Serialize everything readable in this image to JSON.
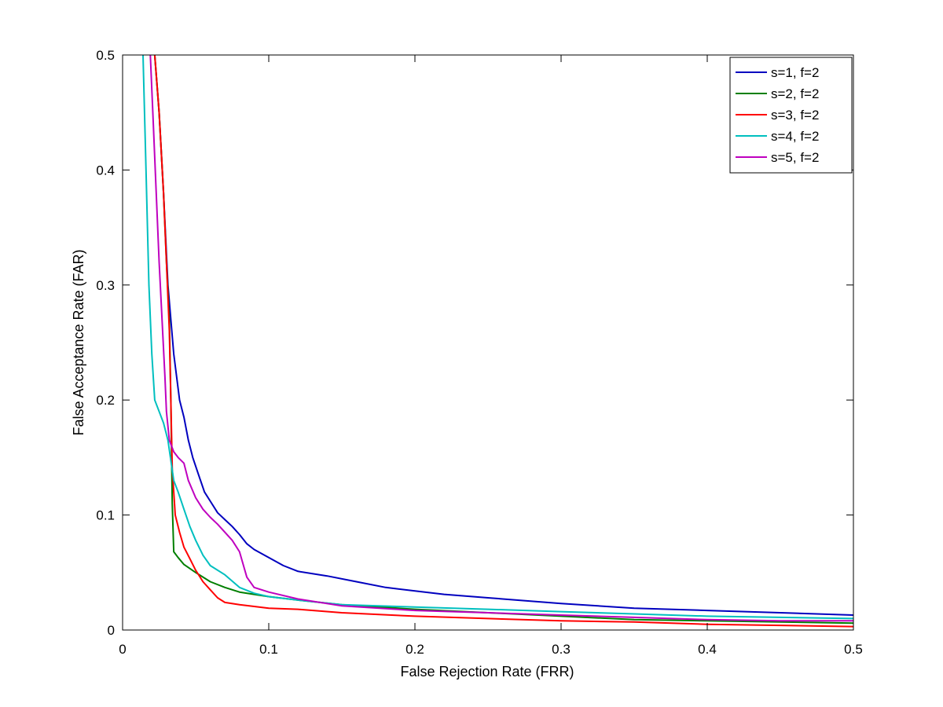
{
  "chart_data": {
    "type": "line",
    "title": "",
    "xlabel": "False Rejection Rate (FRR)",
    "ylabel": "False Acceptance Rate (FAR)",
    "xlim": [
      0,
      0.5
    ],
    "ylim": [
      0,
      0.5
    ],
    "x_ticks": [
      0,
      0.1,
      0.2,
      0.3,
      0.4,
      0.5
    ],
    "y_ticks": [
      0,
      0.1,
      0.2,
      0.3,
      0.4,
      0.5
    ],
    "x_tick_labels": [
      "0",
      "0.1",
      "0.2",
      "0.3",
      "0.4",
      "0.5"
    ],
    "y_tick_labels": [
      "0",
      "0.1",
      "0.2",
      "0.3",
      "0.4",
      "0.5"
    ],
    "grid": false,
    "legend_position": "top-right",
    "series": [
      {
        "name": "s=1, f=2",
        "color": "#0000bf",
        "points": [
          [
            0.022,
            0.5
          ],
          [
            0.025,
            0.45
          ],
          [
            0.028,
            0.38
          ],
          [
            0.031,
            0.3
          ],
          [
            0.033,
            0.27
          ],
          [
            0.035,
            0.24
          ],
          [
            0.037,
            0.22
          ],
          [
            0.039,
            0.2
          ],
          [
            0.042,
            0.185
          ],
          [
            0.045,
            0.165
          ],
          [
            0.048,
            0.15
          ],
          [
            0.052,
            0.135
          ],
          [
            0.056,
            0.12
          ],
          [
            0.06,
            0.112
          ],
          [
            0.065,
            0.102
          ],
          [
            0.07,
            0.096
          ],
          [
            0.075,
            0.09
          ],
          [
            0.08,
            0.083
          ],
          [
            0.085,
            0.075
          ],
          [
            0.09,
            0.07
          ],
          [
            0.1,
            0.063
          ],
          [
            0.11,
            0.056
          ],
          [
            0.12,
            0.051
          ],
          [
            0.14,
            0.047
          ],
          [
            0.16,
            0.042
          ],
          [
            0.18,
            0.037
          ],
          [
            0.2,
            0.034
          ],
          [
            0.22,
            0.031
          ],
          [
            0.25,
            0.028
          ],
          [
            0.28,
            0.025
          ],
          [
            0.3,
            0.023
          ],
          [
            0.35,
            0.019
          ],
          [
            0.4,
            0.017
          ],
          [
            0.45,
            0.015
          ],
          [
            0.5,
            0.013
          ]
        ]
      },
      {
        "name": "s=2, f=2",
        "color": "#007f00",
        "points": [
          [
            0.022,
            0.5
          ],
          [
            0.025,
            0.45
          ],
          [
            0.028,
            0.38
          ],
          [
            0.03,
            0.32
          ],
          [
            0.032,
            0.27
          ],
          [
            0.033,
            0.2
          ],
          [
            0.034,
            0.11
          ],
          [
            0.035,
            0.068
          ],
          [
            0.038,
            0.063
          ],
          [
            0.042,
            0.057
          ],
          [
            0.05,
            0.05
          ],
          [
            0.06,
            0.042
          ],
          [
            0.07,
            0.037
          ],
          [
            0.08,
            0.033
          ],
          [
            0.1,
            0.029
          ],
          [
            0.12,
            0.026
          ],
          [
            0.15,
            0.022
          ],
          [
            0.2,
            0.018
          ],
          [
            0.25,
            0.015
          ],
          [
            0.3,
            0.012
          ],
          [
            0.35,
            0.009
          ],
          [
            0.4,
            0.008
          ],
          [
            0.45,
            0.007
          ],
          [
            0.5,
            0.006
          ]
        ]
      },
      {
        "name": "s=3, f=2",
        "color": "#ff0000",
        "points": [
          [
            0.022,
            0.5
          ],
          [
            0.025,
            0.45
          ],
          [
            0.028,
            0.38
          ],
          [
            0.03,
            0.32
          ],
          [
            0.032,
            0.26
          ],
          [
            0.033,
            0.2
          ],
          [
            0.034,
            0.14
          ],
          [
            0.036,
            0.1
          ],
          [
            0.039,
            0.085
          ],
          [
            0.042,
            0.072
          ],
          [
            0.046,
            0.062
          ],
          [
            0.05,
            0.052
          ],
          [
            0.055,
            0.042
          ],
          [
            0.06,
            0.035
          ],
          [
            0.065,
            0.028
          ],
          [
            0.07,
            0.024
          ],
          [
            0.08,
            0.022
          ],
          [
            0.1,
            0.019
          ],
          [
            0.12,
            0.018
          ],
          [
            0.15,
            0.015
          ],
          [
            0.2,
            0.012
          ],
          [
            0.25,
            0.01
          ],
          [
            0.3,
            0.008
          ],
          [
            0.35,
            0.007
          ],
          [
            0.4,
            0.005
          ],
          [
            0.45,
            0.004
          ],
          [
            0.5,
            0.003
          ]
        ]
      },
      {
        "name": "s=4, f=2",
        "color": "#00bfbf",
        "points": [
          [
            0.014,
            0.5
          ],
          [
            0.016,
            0.4
          ],
          [
            0.018,
            0.3
          ],
          [
            0.02,
            0.24
          ],
          [
            0.022,
            0.2
          ],
          [
            0.025,
            0.19
          ],
          [
            0.028,
            0.18
          ],
          [
            0.031,
            0.165
          ],
          [
            0.035,
            0.13
          ],
          [
            0.038,
            0.12
          ],
          [
            0.042,
            0.105
          ],
          [
            0.046,
            0.09
          ],
          [
            0.05,
            0.078
          ],
          [
            0.055,
            0.065
          ],
          [
            0.06,
            0.056
          ],
          [
            0.07,
            0.048
          ],
          [
            0.08,
            0.037
          ],
          [
            0.09,
            0.032
          ],
          [
            0.1,
            0.029
          ],
          [
            0.12,
            0.026
          ],
          [
            0.15,
            0.022
          ],
          [
            0.2,
            0.02
          ],
          [
            0.25,
            0.018
          ],
          [
            0.3,
            0.016
          ],
          [
            0.35,
            0.014
          ],
          [
            0.4,
            0.012
          ],
          [
            0.45,
            0.011
          ],
          [
            0.5,
            0.01
          ]
        ]
      },
      {
        "name": "s=5, f=2",
        "color": "#bf00bf",
        "points": [
          [
            0.019,
            0.5
          ],
          [
            0.021,
            0.44
          ],
          [
            0.023,
            0.38
          ],
          [
            0.025,
            0.32
          ],
          [
            0.027,
            0.27
          ],
          [
            0.029,
            0.22
          ],
          [
            0.03,
            0.19
          ],
          [
            0.032,
            0.165
          ],
          [
            0.035,
            0.155
          ],
          [
            0.038,
            0.15
          ],
          [
            0.042,
            0.145
          ],
          [
            0.045,
            0.13
          ],
          [
            0.05,
            0.115
          ],
          [
            0.055,
            0.105
          ],
          [
            0.06,
            0.098
          ],
          [
            0.065,
            0.092
          ],
          [
            0.07,
            0.085
          ],
          [
            0.075,
            0.078
          ],
          [
            0.08,
            0.068
          ],
          [
            0.085,
            0.046
          ],
          [
            0.09,
            0.037
          ],
          [
            0.1,
            0.033
          ],
          [
            0.12,
            0.027
          ],
          [
            0.15,
            0.021
          ],
          [
            0.2,
            0.017
          ],
          [
            0.25,
            0.015
          ],
          [
            0.3,
            0.013
          ],
          [
            0.35,
            0.011
          ],
          [
            0.4,
            0.009
          ],
          [
            0.45,
            0.008
          ],
          [
            0.5,
            0.008
          ]
        ]
      }
    ]
  }
}
